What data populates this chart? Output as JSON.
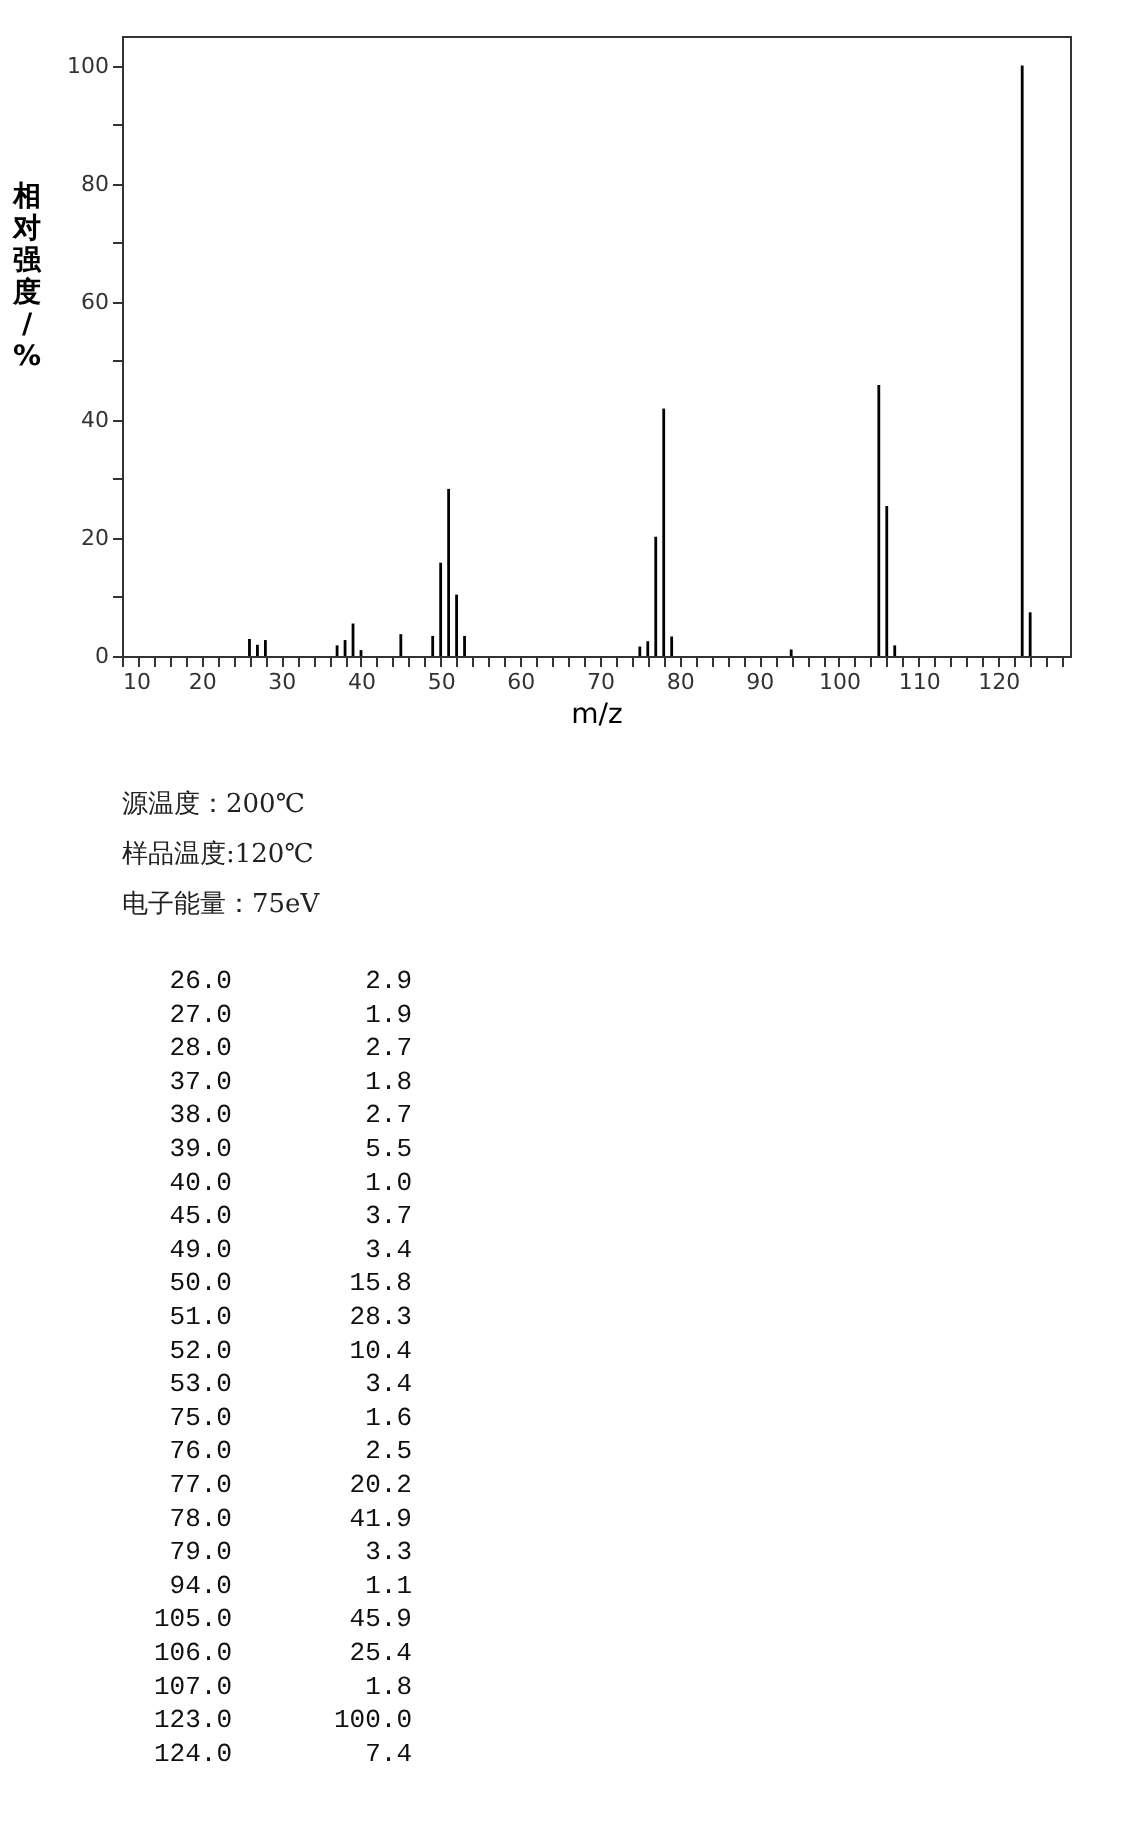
{
  "chart_data": [
    {
      "type": "bar",
      "xlabel": "m/z",
      "ylabel": "相对强度/%",
      "x": [
        26.0,
        27.0,
        28.0,
        37.0,
        38.0,
        39.0,
        40.0,
        45.0,
        49.0,
        50.0,
        51.0,
        52.0,
        53.0,
        75.0,
        76.0,
        77.0,
        78.0,
        79.0,
        94.0,
        105.0,
        106.0,
        107.0,
        123.0,
        124.0
      ],
      "values": [
        2.9,
        1.9,
        2.7,
        1.8,
        2.7,
        5.5,
        1.0,
        3.7,
        3.4,
        15.8,
        28.3,
        10.4,
        3.4,
        1.6,
        2.5,
        20.2,
        41.9,
        3.3,
        1.1,
        45.9,
        25.4,
        1.8,
        100.0,
        7.4
      ],
      "color": "#000000",
      "xlim": [
        10,
        129
      ],
      "ylim": [
        0,
        105
      ],
      "xticks": [
        10,
        {
          "value": 12,
          "label": null
        },
        {
          "value": 14,
          "label": null
        },
        {
          "value": 16,
          "label": null
        },
        {
          "value": 18,
          "label": null
        },
        20,
        {
          "value": 22,
          "label": null
        },
        {
          "value": 24,
          "label": null
        },
        {
          "value": 26,
          "label": null
        },
        {
          "value": 28,
          "label": null
        },
        30,
        {
          "value": 32,
          "label": null
        },
        {
          "value": 34,
          "label": null
        },
        {
          "value": 36,
          "label": null
        },
        {
          "value": 38,
          "label": null
        },
        40,
        {
          "value": 42,
          "label": null
        },
        {
          "value": 44,
          "label": null
        },
        {
          "value": 46,
          "label": null
        },
        {
          "value": 48,
          "label": null
        },
        50,
        {
          "value": 52,
          "label": null
        },
        {
          "value": 54,
          "label": null
        },
        {
          "value": 56,
          "label": null
        },
        {
          "value": 58,
          "label": null
        },
        60,
        {
          "value": 62,
          "label": null
        },
        {
          "value": 64,
          "label": null
        },
        {
          "value": 66,
          "label": null
        },
        {
          "value": 68,
          "label": null
        },
        70,
        {
          "value": 72,
          "label": null
        },
        {
          "value": 74,
          "label": null
        },
        {
          "value": 76,
          "label": null
        },
        {
          "value": 78,
          "label": null
        },
        80,
        {
          "value": 82,
          "label": null
        },
        {
          "value": 84,
          "label": null
        },
        {
          "value": 86,
          "label": null
        },
        {
          "value": 88,
          "label": null
        },
        90,
        {
          "value": 92,
          "label": null
        },
        {
          "value": 94,
          "label": null
        },
        {
          "value": 96,
          "label": null
        },
        {
          "value": 98,
          "label": null
        },
        100,
        {
          "value": 102,
          "label": null
        },
        {
          "value": 104,
          "label": null
        },
        {
          "value": 106,
          "label": null
        },
        {
          "value": 108,
          "label": null
        },
        110,
        {
          "value": 112,
          "label": null
        },
        {
          "value": 114,
          "label": null
        },
        {
          "value": 116,
          "label": null
        },
        {
          "value": 118,
          "label": null
        },
        120,
        {
          "value": 122,
          "label": null
        },
        {
          "value": 124,
          "label": null
        },
        {
          "value": 126,
          "label": null
        },
        {
          "value": 128,
          "label": null
        }
      ],
      "yticks": [
        0,
        {
          "value": 10,
          "label": null
        },
        20,
        {
          "value": 30,
          "label": null
        },
        40,
        {
          "value": 50,
          "label": null
        },
        60,
        {
          "value": 70,
          "label": null
        },
        80,
        {
          "value": 90,
          "label": null
        },
        100
      ],
      "grid": false,
      "legend": false
    },
    {
      "type": "other",
      "annotations": [
        "源温度：200℃",
        "样品温度:120℃",
        "电子能量：75eV"
      ],
      "categories": [
        "26.0",
        "27.0",
        "28.0",
        "37.0",
        "38.0",
        "39.0",
        "40.0",
        "45.0",
        "49.0",
        "50.0",
        "51.0",
        "52.0",
        "53.0",
        "75.0",
        "76.0",
        "77.0",
        "78.0",
        "79.0",
        "94.0",
        "105.0",
        "106.0",
        "107.0",
        "123.0",
        "124.0"
      ],
      "value_labels": [
        "2.9",
        "1.9",
        "2.7",
        "1.8",
        "2.7",
        "5.5",
        "1.0",
        "3.7",
        "3.4",
        "15.8",
        "28.3",
        "10.4",
        "3.4",
        "1.6",
        "2.5",
        "20.2",
        "41.9",
        "3.3",
        "1.1",
        "45.9",
        "25.4",
        "1.8",
        "100.0",
        "7.4"
      ]
    }
  ]
}
